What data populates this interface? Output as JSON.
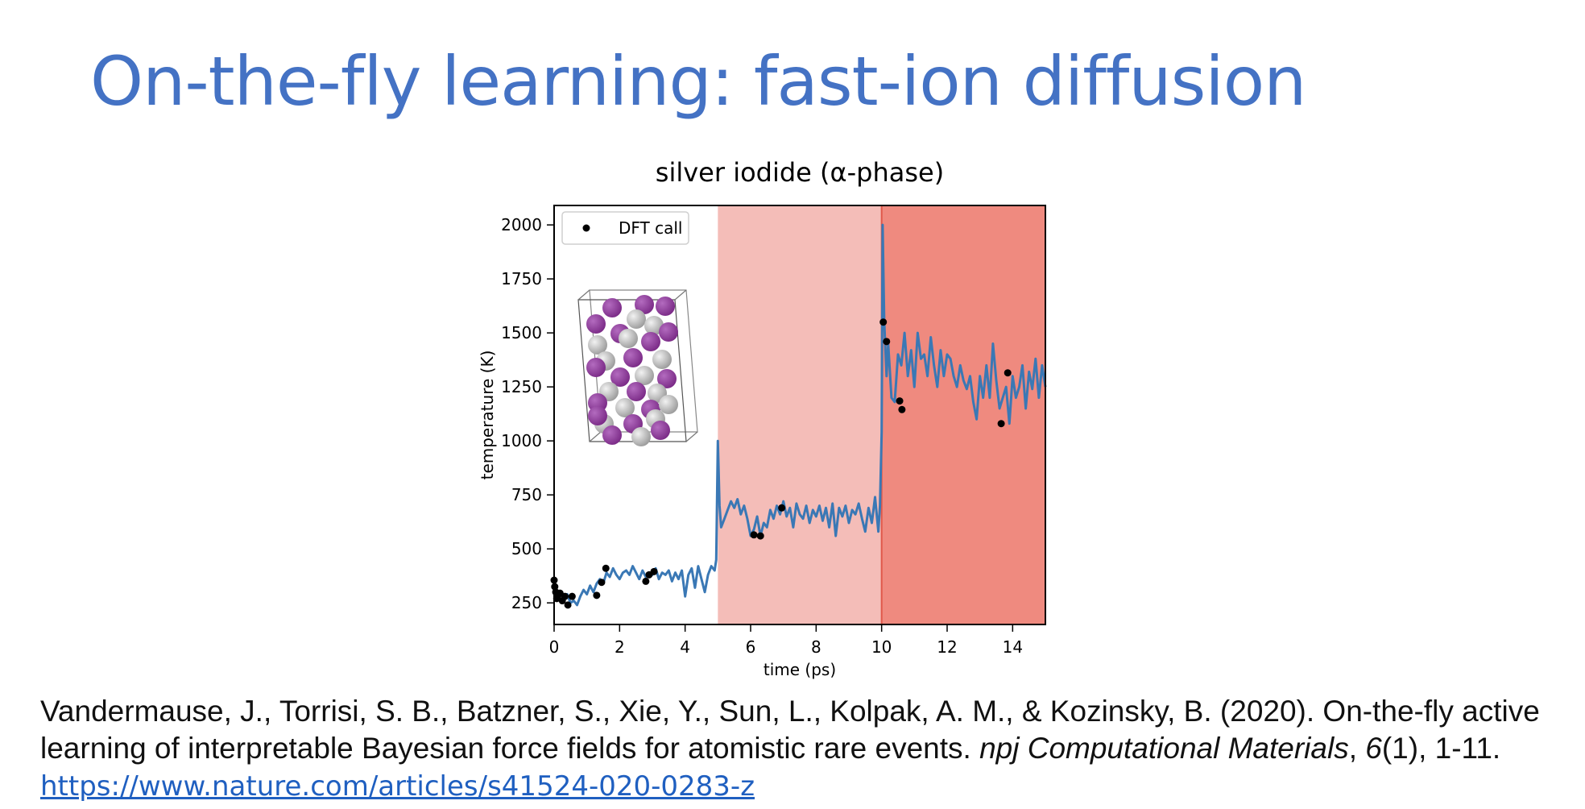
{
  "slide": {
    "title": "On-the-fly learning: fast-ion diffusion"
  },
  "citation": {
    "authors": "Vandermause, J., Torrisi, S. B., Batzner, S., Xie, Y., Sun, L., Kolpak, A. M., & Kozinsky, B. (2020). On-the-fly active learning of interpretable Bayesian force fields for atomistic rare events. ",
    "journal": "npj Computational Materials",
    "volume_sep": ", ",
    "volume": "6",
    "issue_pages": "(1), 1-11. ",
    "url": "https://www.nature.com/articles/s41524-020-0283-z"
  },
  "colors": {
    "title": "#4472C4",
    "line": "#3a78b5",
    "dft_points": "#000000",
    "region_mid": "#f4bdb8",
    "region_high": "#ef8a7f",
    "atom_purple": "#7a2a86",
    "atom_silver": "#c8c8c8"
  },
  "chart_data": {
    "type": "line",
    "title": "silver iodide (α-phase)",
    "xlabel": "time (ps)",
    "ylabel": "temperature (K)",
    "xlim": [
      0,
      15
    ],
    "ylim": [
      150,
      2090
    ],
    "xticks": [
      0,
      2,
      4,
      6,
      8,
      10,
      12,
      14
    ],
    "yticks": [
      250,
      500,
      750,
      1000,
      1250,
      1500,
      1750,
      2000
    ],
    "grid": false,
    "legend": {
      "position": "top-left",
      "entries": [
        "DFT call"
      ]
    },
    "shaded_regions": [
      {
        "x_start": 5,
        "x_end": 10,
        "color": "#f4bdb8"
      },
      {
        "x_start": 10,
        "x_end": 15,
        "color": "#ef8a7f"
      }
    ],
    "inset": "silver iodide crystal structure (purple and silver spheres)",
    "series": [
      {
        "kind": "line",
        "x": [
          0,
          0.1,
          0.2,
          0.3,
          0.4,
          0.5,
          0.6,
          0.7,
          0.8,
          0.9,
          1.0,
          1.1,
          1.2,
          1.3,
          1.4,
          1.5,
          1.6,
          1.7,
          1.8,
          1.9,
          2.0,
          2.1,
          2.2,
          2.3,
          2.4,
          2.5,
          2.6,
          2.7,
          2.8,
          2.9,
          3.0,
          3.1,
          3.2,
          3.3,
          3.4,
          3.5,
          3.6,
          3.7,
          3.8,
          3.9,
          4.0,
          4.1,
          4.2,
          4.3,
          4.4,
          4.5,
          4.6,
          4.7,
          4.8,
          4.9,
          4.95,
          5.0,
          5.05,
          5.1,
          5.2,
          5.3,
          5.4,
          5.5,
          5.6,
          5.7,
          5.8,
          5.9,
          6.0,
          6.1,
          6.2,
          6.3,
          6.4,
          6.5,
          6.6,
          6.7,
          6.8,
          6.9,
          7.0,
          7.1,
          7.2,
          7.3,
          7.4,
          7.5,
          7.6,
          7.7,
          7.8,
          7.9,
          8.0,
          8.1,
          8.2,
          8.3,
          8.4,
          8.5,
          8.6,
          8.7,
          8.8,
          8.9,
          9.0,
          9.1,
          9.2,
          9.3,
          9.4,
          9.5,
          9.6,
          9.7,
          9.8,
          9.9,
          9.95,
          10.0,
          10.03,
          10.08,
          10.15,
          10.2,
          10.3,
          10.4,
          10.5,
          10.6,
          10.7,
          10.8,
          10.9,
          11.0,
          11.1,
          11.2,
          11.3,
          11.4,
          11.5,
          11.6,
          11.7,
          11.8,
          11.9,
          12.0,
          12.1,
          12.2,
          12.3,
          12.4,
          12.5,
          12.6,
          12.7,
          12.8,
          12.9,
          13.0,
          13.1,
          13.2,
          13.3,
          13.4,
          13.5,
          13.6,
          13.7,
          13.8,
          13.9,
          14.0,
          14.1,
          14.2,
          14.3,
          14.4,
          14.5,
          14.6,
          14.7,
          14.8,
          14.9,
          15.0
        ],
        "y": [
          320,
          285,
          300,
          270,
          290,
          250,
          260,
          240,
          280,
          310,
          290,
          330,
          300,
          340,
          360,
          340,
          390,
          370,
          410,
          380,
          360,
          390,
          400,
          380,
          420,
          390,
          360,
          400,
          370,
          390,
          380,
          410,
          360,
          390,
          380,
          400,
          350,
          390,
          360,
          400,
          280,
          380,
          410,
          320,
          420,
          360,
          300,
          380,
          420,
          400,
          450,
          1000,
          700,
          600,
          640,
          680,
          720,
          690,
          730,
          660,
          700,
          640,
          560,
          590,
          650,
          560,
          620,
          600,
          680,
          640,
          700,
          660,
          720,
          650,
          690,
          600,
          710,
          660,
          640,
          700,
          620,
          680,
          650,
          700,
          630,
          690,
          600,
          710,
          560,
          690,
          650,
          700,
          620,
          680,
          660,
          710,
          640,
          580,
          690,
          620,
          740,
          580,
          700,
          1040,
          2000,
          1550,
          1300,
          1450,
          1200,
          1180,
          1400,
          1350,
          1500,
          1300,
          1420,
          1250,
          1500,
          1380,
          1400,
          1300,
          1480,
          1350,
          1250,
          1420,
          1300,
          1400,
          1380,
          1300,
          1250,
          1350,
          1280,
          1240,
          1300,
          1180,
          1100,
          1300,
          1200,
          1350,
          1200,
          1450,
          1280,
          1150,
          1200,
          1250,
          1080,
          1300,
          1200,
          1250,
          1350,
          1150,
          1320,
          1240,
          1380,
          1200,
          1350,
          1250
        ]
      },
      {
        "name": "DFT call",
        "kind": "scatter",
        "x": [
          0.0,
          0.02,
          0.05,
          0.08,
          0.12,
          0.18,
          0.25,
          0.33,
          0.42,
          0.55,
          1.3,
          1.45,
          1.58,
          2.8,
          2.9,
          3.05,
          6.1,
          6.3,
          6.95,
          10.05,
          10.15,
          10.55,
          10.62,
          13.65,
          13.85
        ],
        "y": [
          355,
          325,
          300,
          270,
          285,
          295,
          260,
          280,
          240,
          280,
          285,
          345,
          410,
          350,
          380,
          395,
          565,
          560,
          690,
          1550,
          1460,
          1185,
          1145,
          1080,
          1315
        ]
      }
    ]
  }
}
